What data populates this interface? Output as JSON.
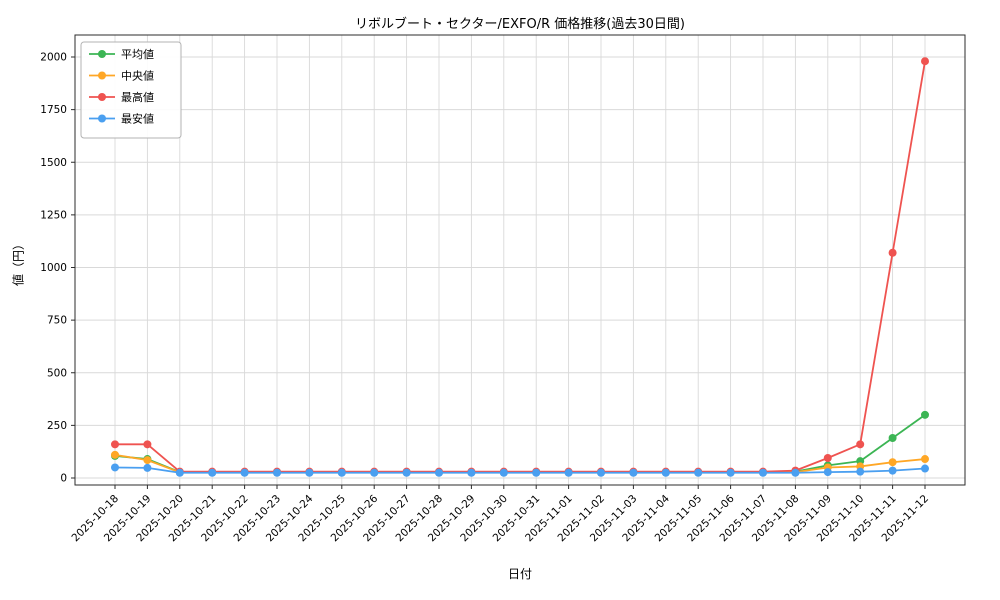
{
  "chart_data": {
    "type": "line",
    "title": "リボルブート・セクター/EXFO/R 価格推移(過去30日間)",
    "xlabel": "日付",
    "ylabel": "値（円）",
    "ylim": [
      0,
      2000
    ],
    "yticks": [
      0,
      250,
      500,
      750,
      1000,
      1250,
      1500,
      1750,
      2000
    ],
    "grid": true,
    "legend_position": "upper-left",
    "categories": [
      "2025-10-18",
      "2025-10-19",
      "2025-10-20",
      "2025-10-21",
      "2025-10-22",
      "2025-10-23",
      "2025-10-24",
      "2025-10-25",
      "2025-10-26",
      "2025-10-27",
      "2025-10-28",
      "2025-10-29",
      "2025-10-30",
      "2025-10-31",
      "2025-11-01",
      "2025-11-02",
      "2025-11-03",
      "2025-11-04",
      "2025-11-05",
      "2025-11-06",
      "2025-11-07",
      "2025-11-08",
      "2025-11-09",
      "2025-11-10",
      "2025-11-11",
      "2025-11-12"
    ],
    "series": [
      {
        "name": "平均値",
        "color": "#3cb554",
        "values": [
          105,
          90,
          28,
          28,
          28,
          28,
          28,
          28,
          28,
          28,
          28,
          28,
          28,
          28,
          28,
          28,
          28,
          28,
          28,
          28,
          28,
          30,
          60,
          80,
          190,
          300
        ]
      },
      {
        "name": "中央値",
        "color": "#ffa726",
        "values": [
          110,
          85,
          27,
          27,
          27,
          27,
          27,
          27,
          27,
          27,
          27,
          27,
          27,
          27,
          27,
          27,
          27,
          27,
          27,
          27,
          27,
          28,
          50,
          55,
          75,
          90
        ]
      },
      {
        "name": "最高値",
        "color": "#ef5350",
        "values": [
          160,
          160,
          30,
          30,
          30,
          30,
          30,
          30,
          30,
          30,
          30,
          30,
          30,
          30,
          30,
          30,
          30,
          30,
          30,
          30,
          30,
          35,
          95,
          160,
          1070,
          1980
        ]
      },
      {
        "name": "最安値",
        "color": "#4a9ff0",
        "values": [
          50,
          48,
          25,
          25,
          25,
          25,
          25,
          25,
          25,
          25,
          25,
          25,
          25,
          25,
          25,
          25,
          25,
          25,
          25,
          25,
          25,
          25,
          28,
          30,
          35,
          45
        ]
      }
    ],
    "colors": {
      "grid": "#d9d9d9",
      "axis": "#2b2b2b",
      "legend_border": "#b3b3b3",
      "legend_bg": "#ffffff"
    }
  }
}
